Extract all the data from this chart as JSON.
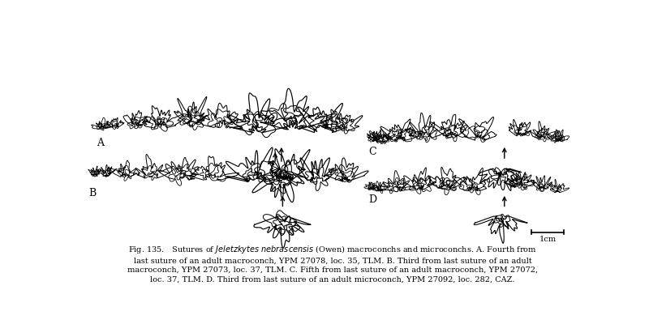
{
  "caption_italic": "Jeletzkytes nebrascensis",
  "caption_rest": " (Owen) macroconchs and microconchs. A. Fourth from",
  "caption_line2": "last suture of an adult macroconch, YPM 27078, loc. 35, TLM. B. Third from last suture of an adult",
  "caption_line3": "macroconch, YPM 27073, loc. 37, TLM. C. Fifth from last suture of an adult macroconch, YPM 27072,",
  "caption_line4": "loc. 37, TLM. D. Third from last suture of an adult microconch, YPM 27092, loc. 282, CAZ.",
  "label_A": "A",
  "label_B": "B",
  "label_C": "C",
  "label_D": "D",
  "scale_label": "1cm",
  "background_color": "#ffffff",
  "line_color": "#000000",
  "caption_fontsize": 7.0,
  "label_fontsize": 9,
  "fig_width": 8.0,
  "fig_height": 4.0,
  "dpi": 100
}
